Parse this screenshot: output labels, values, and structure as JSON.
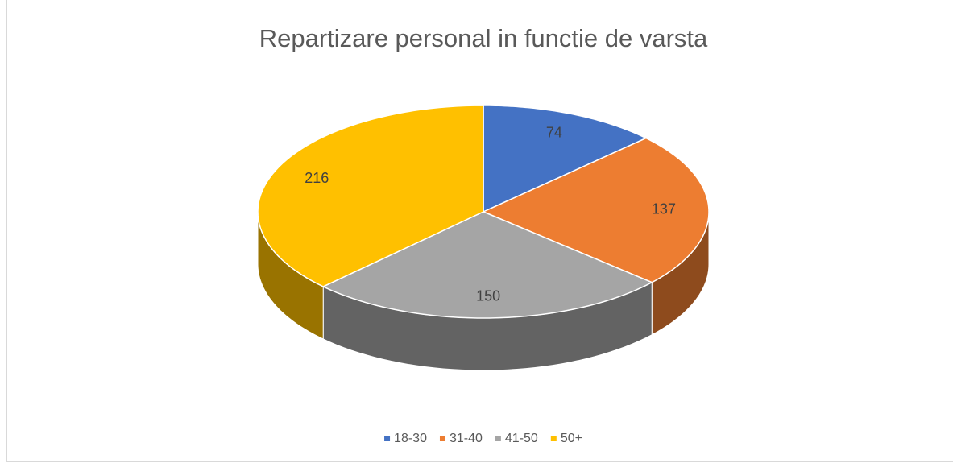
{
  "chart_data": {
    "type": "pie3d",
    "title": "Repartizare personal in functie de varsta",
    "categories": [
      "18-30",
      "31-40",
      "41-50",
      "50+"
    ],
    "values": [
      74,
      137,
      150,
      216
    ],
    "colors": [
      "#4472c4",
      "#ed7d31",
      "#a5a5a5",
      "#ffc000"
    ],
    "legend": "bottom"
  }
}
